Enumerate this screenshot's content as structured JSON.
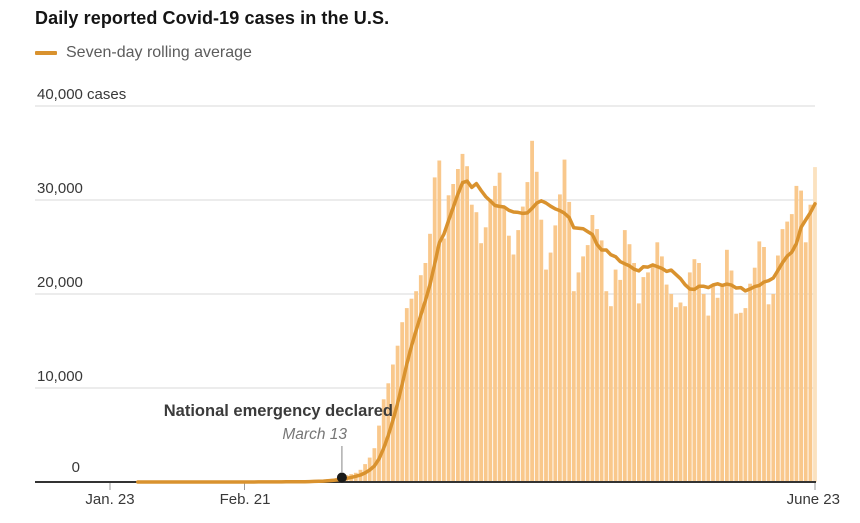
{
  "chart_data": {
    "type": "bar",
    "title": "Daily reported Covid-19 cases in the U.S.",
    "xlabel": "",
    "ylabel": "cases",
    "ylim": [
      0,
      40000
    ],
    "grid": "horizontal",
    "legend_position": "top-left",
    "x_unit": "day",
    "x_start": "Jan. 23",
    "x_end": "June 23",
    "x_ticks": [
      {
        "label": "Jan. 23",
        "day": 0
      },
      {
        "label": "Feb. 21",
        "day": 29
      },
      {
        "label": "June 23",
        "day": 152
      }
    ],
    "y_ticks": [
      {
        "label": "0",
        "value": 0
      },
      {
        "label": "10,000",
        "value": 10000
      },
      {
        "label": "20,000",
        "value": 20000
      },
      {
        "label": "30,000",
        "value": 30000
      },
      {
        "label": "40,000 cases",
        "value": 40000
      }
    ],
    "annotation": {
      "text": "National emergency declared",
      "date_label": "March 13",
      "day": 50,
      "value": 0
    },
    "series": [
      {
        "name": "Daily reported cases",
        "type": "bar",
        "values": [
          0,
          0,
          0,
          1,
          0,
          0,
          0,
          0,
          2,
          1,
          0,
          0,
          0,
          0,
          0,
          0,
          0,
          0,
          0,
          2,
          1,
          1,
          3,
          0,
          0,
          0,
          1,
          0,
          2,
          1,
          19,
          0,
          18,
          20,
          22,
          23,
          9,
          7,
          25,
          20,
          35,
          70,
          50,
          90,
          120,
          130,
          170,
          300,
          340,
          430,
          590,
          730,
          840,
          980,
          1300,
          1900,
          2600,
          3600,
          6000,
          8800,
          10500,
          12500,
          14500,
          17000,
          18500,
          19500,
          20300,
          22000,
          23300,
          26400,
          32400,
          34200,
          25900,
          30500,
          31700,
          33300,
          34900,
          33600,
          29500,
          28700,
          25400,
          27100,
          30100,
          31500,
          32900,
          29100,
          26200,
          24200,
          26800,
          29300,
          31900,
          36300,
          33000,
          27900,
          22600,
          24400,
          27300,
          30600,
          34300,
          29800,
          20300,
          22300,
          24000,
          25200,
          28400,
          26900,
          25700,
          20300,
          18700,
          22600,
          21500,
          26800,
          25300,
          23300,
          19000,
          21800,
          22300,
          23200,
          25500,
          24000,
          21000,
          20000,
          18600,
          19100,
          18700,
          22300,
          23700,
          23300,
          20000,
          17700,
          21000,
          19600,
          21100,
          24700,
          22500,
          17900,
          18000,
          18500,
          21100,
          22800,
          25600,
          25000,
          18900,
          20000,
          24100,
          26900,
          27700,
          28500,
          31500,
          31000,
          25500,
          29500,
          33500
        ]
      },
      {
        "name": "Seven-day rolling average",
        "type": "line",
        "derived": "7-day rolling mean of daily reported cases"
      }
    ],
    "colors": {
      "bar": "#F9C88C",
      "bar_latest": "#FBE2BF",
      "line": "#D9922E",
      "grid": "#D8D8D8",
      "axis": "#333333",
      "tick": "#999999",
      "dot": "#1A1A1A",
      "pointer": "#999999"
    }
  }
}
